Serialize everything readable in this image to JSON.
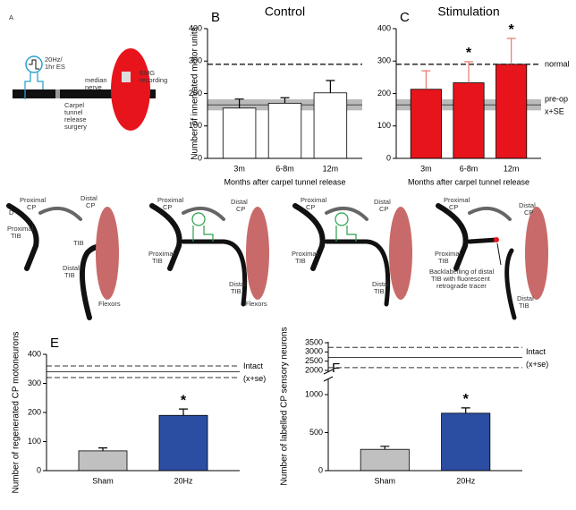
{
  "chart_data": [
    {
      "type": "bar",
      "panel": "B",
      "title": "Control",
      "ylabel": "Number of innervated motor units",
      "xlabel": "Months after carpel tunnel release",
      "categories": [
        "3m",
        "6-8m",
        "12m"
      ],
      "values": [
        155,
        170,
        202
      ],
      "errors": [
        28,
        17,
        38
      ],
      "color": "#ffffff",
      "error_color": "#000000",
      "ylim": [
        0,
        400
      ],
      "yticks": [
        0,
        100,
        200,
        300,
        400
      ],
      "normal_line": {
        "value": 290
      },
      "reference": {
        "mean": 165,
        "lower": 148,
        "upper": 182,
        "style": "shaded"
      }
    },
    {
      "type": "bar",
      "panel": "C",
      "title": "Stimulation",
      "xlabel": "Months after carpel tunnel release",
      "categories": [
        "3m",
        "6-8m",
        "12m"
      ],
      "values": [
        213,
        233,
        290
      ],
      "errors": [
        57,
        65,
        80
      ],
      "color": "#e8141c",
      "error_color": "#e87a6e",
      "ylim": [
        0,
        400
      ],
      "yticks": [
        0,
        100,
        200,
        300,
        400
      ],
      "significant": [
        false,
        true,
        true
      ],
      "marker": "*",
      "normal_line": {
        "value": 290,
        "label": "normal"
      },
      "reference": {
        "mean": 165,
        "lower": 148,
        "upper": 182,
        "style": "shaded",
        "labels": [
          "pre-op",
          "x+SE"
        ]
      }
    },
    {
      "type": "bar",
      "panel": "E",
      "ylabel": "Number of regenerated CP motoneurons",
      "categories": [
        "Sham",
        "20Hz"
      ],
      "values": [
        68,
        190
      ],
      "errors": [
        10,
        22
      ],
      "colors": [
        "#c0c0c0",
        "#2b4ea2"
      ],
      "error_color": "#000000",
      "ylim": [
        0,
        400
      ],
      "yticks": [
        0,
        100,
        200,
        300,
        400
      ],
      "significant": [
        false,
        true
      ],
      "marker": "*",
      "reference": {
        "mean": 340,
        "lower": 320,
        "upper": 360,
        "style": "dashed",
        "labels": [
          "Intact",
          "(x+se)"
        ]
      }
    },
    {
      "type": "bar",
      "panel": "F",
      "ylabel": "Number of labelled CP sensory neurons",
      "categories": [
        "Sham",
        "20Hz"
      ],
      "values": [
        280,
        755
      ],
      "errors": [
        40,
        70
      ],
      "colors": [
        "#c0c0c0",
        "#2b4ea2"
      ],
      "error_color": "#000000",
      "ylim": [
        0,
        1200
      ],
      "yticks": [
        0,
        500,
        1000
      ],
      "ylim_upper": [
        1950,
        3550
      ],
      "yticks_upper": [
        2000,
        2500,
        3000,
        3500
      ],
      "significant": [
        false,
        true
      ],
      "marker": "*",
      "reference": {
        "mean": 2700,
        "lower": 2150,
        "upper": 3250,
        "style": "dashed",
        "labels": [
          "Intact",
          "(x+se)"
        ]
      }
    }
  ],
  "panel_a": {
    "label": "A",
    "texts": [
      "20Hz/",
      "1hr ES",
      "median",
      "nerve",
      "Carpel",
      "tunnel",
      "release",
      "surgery",
      "EMG",
      "recording"
    ]
  },
  "panel_d": {
    "label": "D",
    "texts": [
      "Proximal",
      "CP",
      "Proximal",
      "TIB",
      "Distal",
      "CP",
      "TIB",
      "Distal",
      "TIB",
      "Flexors",
      "Proximal",
      "CP",
      "Proximal",
      "TIB",
      "Distal",
      "CP",
      "Distal",
      "TIB",
      "Flexors",
      "Proximal",
      "CP",
      "Proximal",
      "TIB",
      "Distal",
      "CP",
      "Distal",
      "TIB",
      "Proximal",
      "CP",
      "Proximal",
      "TIB",
      "Distal",
      "CP",
      "Distal",
      "TIB",
      "Backlabelling of distal",
      "TIB with fluorescent",
      "retrograde tracer"
    ]
  }
}
